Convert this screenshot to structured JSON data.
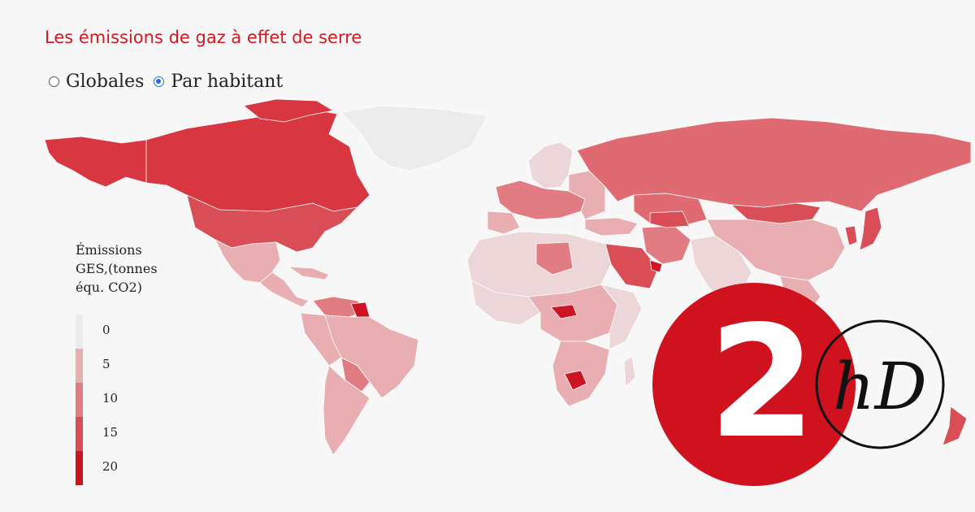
{
  "title": "Les émissions de gaz à effet de serre",
  "toggle": {
    "options": [
      {
        "label": "Globales",
        "selected": false
      },
      {
        "label": "Par habitant",
        "selected": true
      }
    ]
  },
  "legend": {
    "title": "Émissions\nGES,(tonnes\néqu. CO2)",
    "items": [
      {
        "label": "0",
        "color": "#ececec"
      },
      {
        "label": "5",
        "color": "#e8aeb1"
      },
      {
        "label": "10",
        "color": "#e17d82"
      },
      {
        "label": "15",
        "color": "#d84d56"
      },
      {
        "label": "20",
        "color": "#cc1423"
      }
    ]
  },
  "map": {
    "regions": [
      {
        "name": "Canada",
        "color": "#d83640"
      },
      {
        "name": "Greenland",
        "color": "#ececec"
      },
      {
        "name": "United States",
        "color": "#d84d56"
      },
      {
        "name": "Mexico",
        "color": "#e8aeb1"
      },
      {
        "name": "South America",
        "color": "#e8aeb1"
      },
      {
        "name": "Europe",
        "color": "#e17d82"
      },
      {
        "name": "Russia",
        "color": "#e06a72"
      },
      {
        "name": "Africa",
        "color": "#ecd6d7"
      },
      {
        "name": "Middle East",
        "color": "#d84d56"
      },
      {
        "name": "China",
        "color": "#e8aeb1"
      },
      {
        "name": "Australia",
        "color": "#d84d56"
      }
    ]
  },
  "colors": {
    "brand": "#d01a22",
    "logo_red": "#d0121f"
  },
  "logo": {
    "number": "2",
    "mark": "hD"
  }
}
